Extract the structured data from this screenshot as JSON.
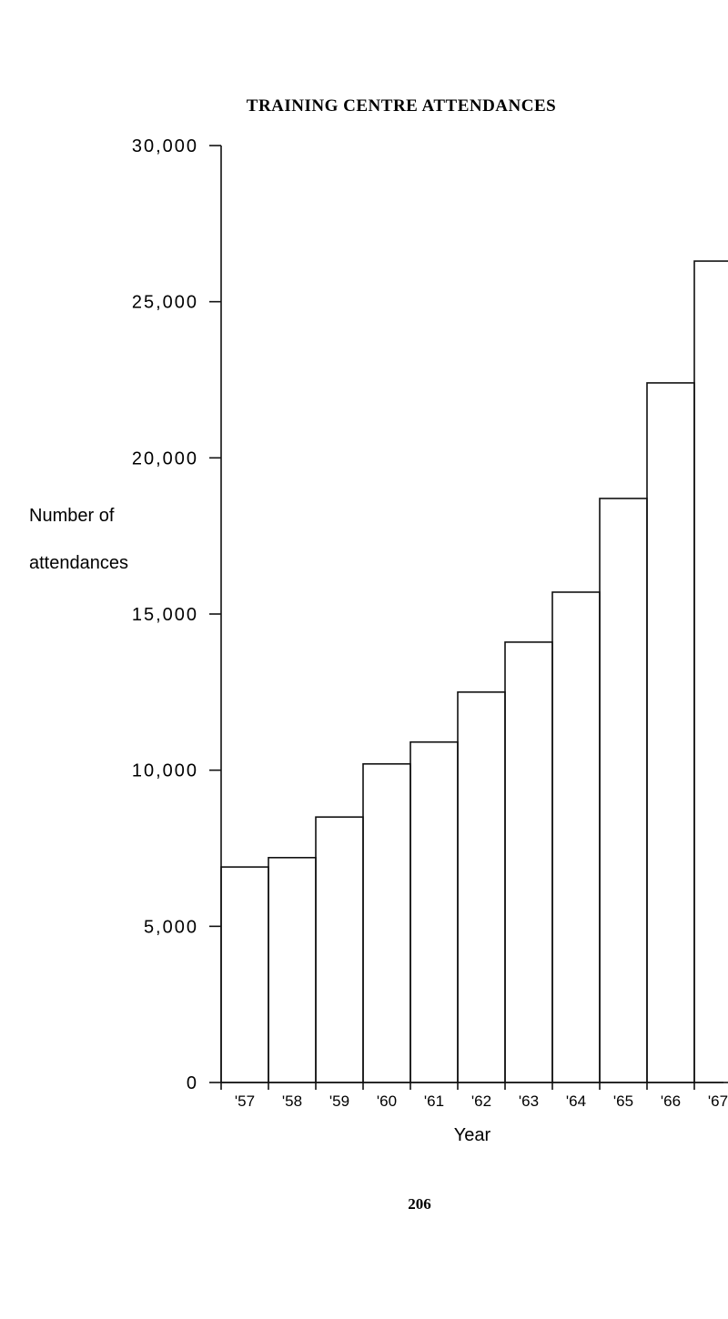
{
  "chart_data": {
    "type": "bar",
    "title": "TRAINING CENTRE ATTENDANCES",
    "xlabel": "Year",
    "ylabel_lines": [
      "Number of",
      "attendances"
    ],
    "categories": [
      "'57",
      "'58",
      "'59",
      "'60",
      "'61",
      "'62",
      "'63",
      "'64",
      "'65",
      "'66",
      "'67"
    ],
    "values": [
      6900,
      7200,
      8500,
      10200,
      10900,
      12500,
      14100,
      15700,
      18700,
      22400,
      26300
    ],
    "ylim": [
      0,
      30000
    ],
    "yticks": [
      0,
      5000,
      10000,
      15000,
      20000,
      25000,
      30000
    ],
    "ytick_labels": [
      "0",
      "5,000",
      "10,000",
      "15,000",
      "20,000",
      "25,000",
      "30,000"
    ],
    "grid": false,
    "legend": "none"
  },
  "page_number": "206",
  "colors": {
    "ink": "#111111",
    "background": "#ffffff"
  }
}
